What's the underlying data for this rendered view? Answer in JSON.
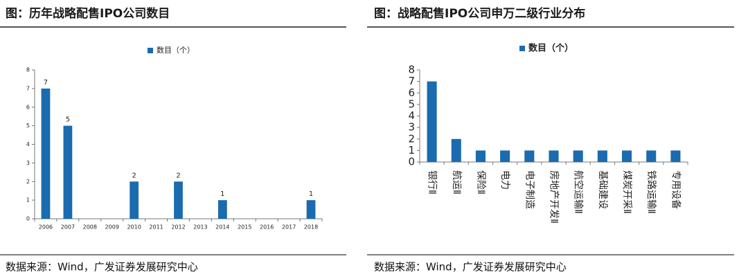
{
  "chart_data": [
    {
      "type": "bar",
      "title": "图：历年战略配售IPO公司数目",
      "legend": "数目（个）",
      "categories": [
        "2006",
        "2007",
        "2008",
        "2009",
        "2010",
        "2011",
        "2012",
        "2013",
        "2014",
        "2015",
        "2016",
        "2017",
        "2018"
      ],
      "values": [
        7,
        5,
        0,
        0,
        2,
        0,
        2,
        0,
        1,
        0,
        0,
        0,
        1
      ],
      "color": "#1a6bb0",
      "ylim": [
        0,
        8
      ],
      "yticks": [
        0,
        1,
        2,
        3,
        4,
        5,
        6,
        7,
        8
      ],
      "data_labels": true,
      "source": "数据来源：Wind，广发证券发展研究中心"
    },
    {
      "type": "bar",
      "title": "图：战略配售IPO公司申万二级行业分布",
      "legend": "数目（个）",
      "categories": [
        "银行Ⅱ",
        "航运Ⅱ",
        "保险Ⅱ",
        "电力",
        "电子制造",
        "房地产开发Ⅱ",
        "航空运输Ⅱ",
        "基础建设",
        "煤炭开采Ⅱ",
        "铁路运输Ⅱ",
        "专用设备"
      ],
      "values": [
        7,
        2,
        1,
        1,
        1,
        1,
        1,
        1,
        1,
        1,
        1
      ],
      "color": "#1a6bb0",
      "ylim": [
        0,
        8
      ],
      "yticks": [
        0,
        1,
        2,
        3,
        4,
        5,
        6,
        7,
        8
      ],
      "data_labels": false,
      "source": "数据来源：Wind，广发证券发展研究中心"
    }
  ]
}
